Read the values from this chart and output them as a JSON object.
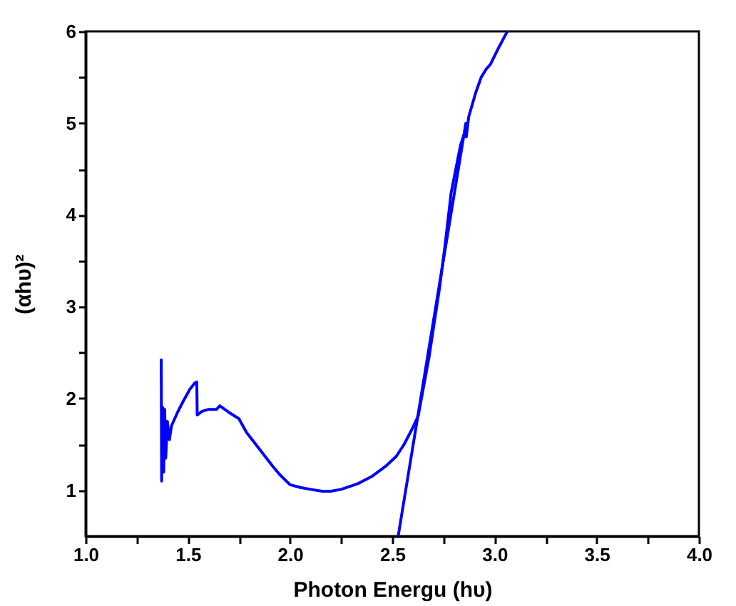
{
  "chart_data": {
    "type": "line",
    "xlabel": "Photon Energu (hυ)",
    "ylabel": "(αhυ)²",
    "xlim": [
      1.0,
      4.0
    ],
    "xticks": [
      {
        "value": 1,
        "label": "1.0"
      },
      {
        "value": 1.25,
        "label": null
      },
      {
        "value": 1.5,
        "label": "1.5"
      },
      {
        "value": 1.75,
        "label": null
      },
      {
        "value": 2,
        "label": "2.0"
      },
      {
        "value": 2.25,
        "label": null
      },
      {
        "value": 2.5,
        "label": "2.5"
      },
      {
        "value": 2.75,
        "label": null
      },
      {
        "value": 3,
        "label": "3.0"
      },
      {
        "value": 3.25,
        "label": null
      },
      {
        "value": 3.5,
        "label": "3.5"
      },
      {
        "value": 3.75,
        "label": null
      },
      {
        "value": 4,
        "label": "4.0"
      }
    ],
    "ylim": [
      0.5,
      6
    ],
    "yticks": [
      1,
      {
        "value": 1.5,
        "label": null
      },
      2,
      {
        "value": 2.5,
        "label": null
      },
      3,
      {
        "value": 3.5,
        "label": null
      },
      4,
      {
        "value": 4.5,
        "label": null
      },
      5,
      {
        "value": 5.5,
        "label": null
      },
      6
    ],
    "grid": false,
    "marker": "none",
    "line_style": "solid",
    "series": [
      {
        "color": "#0000ff",
        "x": [
          1.37,
          1.372,
          1.378,
          1.382,
          1.387,
          1.392,
          1.4,
          1.41,
          1.42,
          1.45,
          1.48,
          1.51,
          1.535,
          1.544,
          1.546,
          1.57,
          1.6,
          1.64,
          1.656,
          1.7,
          1.75,
          1.787,
          1.85,
          1.916,
          1.95,
          2.0,
          2.05,
          2.1,
          2.157,
          2.2,
          2.25,
          2.33,
          2.4,
          2.467,
          2.52,
          2.558,
          2.6,
          2.627,
          2.68,
          2.731,
          2.76,
          2.788,
          2.834,
          2.868,
          2.862,
          2.874,
          2.908,
          2.935,
          2.96,
          2.98,
          3.02,
          3.063
        ],
        "values": [
          2.42,
          1.1,
          1.9,
          1.2,
          1.88,
          1.35,
          1.75,
          1.55,
          1.7,
          1.85,
          1.98,
          2.1,
          2.17,
          2.18,
          1.82,
          1.86,
          1.88,
          1.88,
          1.92,
          1.85,
          1.78,
          1.63,
          1.45,
          1.26,
          1.17,
          1.06,
          1.03,
          1.01,
          0.99,
          0.99,
          1.01,
          1.07,
          1.15,
          1.26,
          1.37,
          1.5,
          1.68,
          1.81,
          2.45,
          3.2,
          3.7,
          4.24,
          4.76,
          4.99,
          4.85,
          5.07,
          5.33,
          5.5,
          5.59,
          5.64,
          5.82,
          6.0
        ]
      },
      {
        "type": "line",
        "color": "#0000ff",
        "x": [
          2.529,
          2.86
        ],
        "values": [
          0.5,
          5.0
        ]
      }
    ]
  }
}
